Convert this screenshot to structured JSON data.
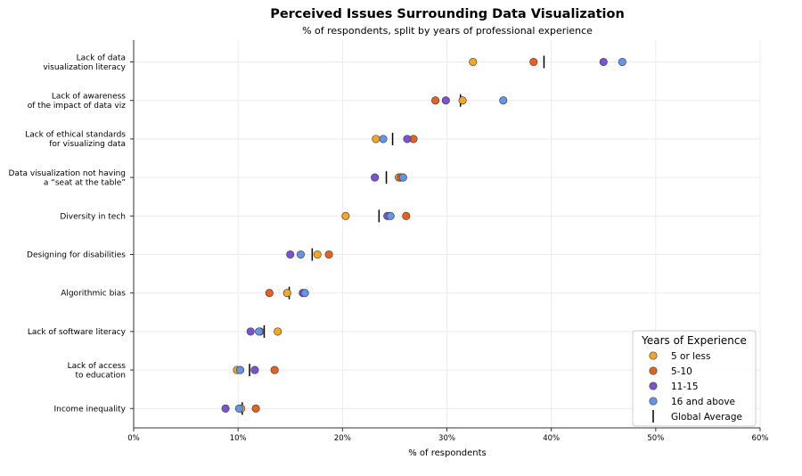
{
  "chart_data": {
    "type": "scatter",
    "title": "Perceived Issues Surrounding Data Visualization",
    "subtitle": "% of respondents, split by years of professional experience",
    "xlabel": "% of respondents",
    "ylabel": "",
    "xlim": [
      0,
      60
    ],
    "x_ticks": [
      "0%",
      "10%",
      "20%",
      "30%",
      "40%",
      "50%",
      "60%"
    ],
    "grid": true,
    "legend_position": "bottom-right",
    "legend_title": "Years of Experience",
    "categories": [
      [
        "Lack of data",
        "visualization literacy"
      ],
      [
        "Lack of awareness",
        "of the impact of data viz"
      ],
      [
        "Lack of ethical standards",
        "for visualizing data"
      ],
      [
        "Data visualization not having",
        "a “seat at the table”"
      ],
      [
        "Diversity in tech"
      ],
      [
        "Designing for disabilities"
      ],
      [
        "Algorithmic bias"
      ],
      [
        "Lack of software literacy"
      ],
      [
        "Lack of access",
        "to education"
      ],
      [
        "Income inequality"
      ]
    ],
    "series": [
      {
        "name": "5 or less",
        "color": "#f5a623",
        "values": [
          32.5,
          31.5,
          23.2,
          25.4,
          20.3,
          17.6,
          14.7,
          13.8,
          9.9,
          10.3
        ]
      },
      {
        "name": "5-10",
        "color": "#e8601c",
        "values": [
          38.3,
          28.9,
          26.8,
          25.6,
          26.1,
          18.7,
          13.0,
          12.1,
          13.5,
          11.7
        ]
      },
      {
        "name": "11-15",
        "color": "#7b52d6",
        "values": [
          45.0,
          29.9,
          26.2,
          23.1,
          24.3,
          15.0,
          16.2,
          11.2,
          11.6,
          8.8
        ]
      },
      {
        "name": "16 and above",
        "color": "#6495ed",
        "values": [
          46.8,
          35.4,
          23.9,
          25.8,
          24.6,
          16.0,
          16.4,
          12.0,
          10.2,
          10.1
        ]
      }
    ],
    "global_average": {
      "name": "Global Average",
      "color": "#000000",
      "values": [
        39.3,
        31.3,
        24.8,
        24.2,
        23.5,
        17.1,
        14.9,
        12.5,
        11.1,
        10.4
      ]
    }
  }
}
